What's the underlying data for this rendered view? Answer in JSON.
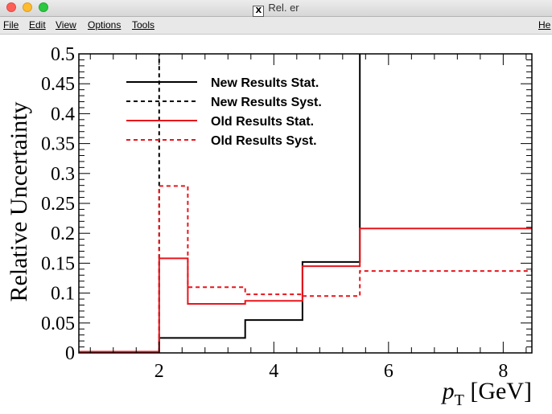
{
  "window": {
    "title": "Rel. er"
  },
  "menu": {
    "items": [
      "File",
      "Edit",
      "View",
      "Options",
      "Tools"
    ],
    "right_item": "He"
  },
  "chart_data": {
    "type": "line",
    "xlabel": "p_T [GeV]",
    "xlabel_main": "p",
    "xlabel_sub": "T",
    "xlabel_unit": " [GeV]",
    "ylabel": "Relative Uncertainty",
    "xlim": [
      0.6,
      8.5
    ],
    "ylim": [
      0,
      0.5
    ],
    "x_ticks": [
      2,
      4,
      6,
      8
    ],
    "y_ticks": [
      0,
      0.05,
      0.1,
      0.15,
      0.2,
      0.25,
      0.3,
      0.35,
      0.4,
      0.45,
      0.5
    ],
    "y_tick_labels": [
      "0",
      "0.05",
      "0.1",
      "0.15",
      "0.2",
      "0.25",
      "0.3",
      "0.35",
      "0.4",
      "0.45",
      "0.5"
    ],
    "x_tick_labels": [
      "2",
      "4",
      "6",
      "8"
    ],
    "legend_position": "top-left",
    "series": [
      {
        "name": "New Results Stat.",
        "color": "#000000",
        "style": "solid",
        "bin_edges": [
          0.6,
          2.0,
          2.5,
          3.5,
          4.5,
          5.5,
          8.5
        ],
        "values": [
          0.002,
          0.025,
          0.025,
          0.055,
          0.152,
          1.0
        ]
      },
      {
        "name": "New Results Syst.",
        "color": "#000000",
        "style": "dashed",
        "bin_edges": [
          0.6,
          2.0,
          2.5
        ],
        "values": [
          0.002,
          1.0
        ]
      },
      {
        "name": "Old Results Stat.",
        "color": "#e8141b",
        "style": "solid",
        "bin_edges": [
          0.6,
          2.0,
          2.5,
          3.5,
          4.5,
          5.5,
          8.5
        ],
        "values": [
          0.002,
          0.158,
          0.082,
          0.087,
          0.145,
          0.208
        ]
      },
      {
        "name": "Old Results Syst.",
        "color": "#e8141b",
        "style": "dashed",
        "bin_edges": [
          0.6,
          2.0,
          2.5,
          3.5,
          4.5,
          5.5,
          8.5
        ],
        "values": [
          0.002,
          0.279,
          0.11,
          0.098,
          0.095,
          0.137
        ]
      }
    ]
  }
}
